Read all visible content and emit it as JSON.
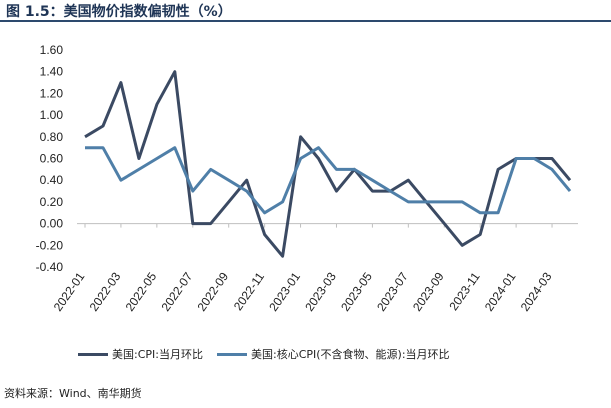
{
  "title": "图 1.5：美国物价指数偏韧性（%）",
  "source": "资料来源：Wind、南华期货",
  "colors": {
    "series1": "#3b4a63",
    "series2": "#4f7fa8",
    "accent": "#1f3556"
  },
  "chart_data": {
    "type": "line",
    "x": [
      "2022-01",
      "2022-02",
      "2022-03",
      "2022-04",
      "2022-05",
      "2022-06",
      "2022-07",
      "2022-08",
      "2022-09",
      "2022-10",
      "2022-11",
      "2022-12",
      "2023-01",
      "2023-02",
      "2023-03",
      "2023-04",
      "2023-05",
      "2023-06",
      "2023-07",
      "2023-08",
      "2023-09",
      "2023-10",
      "2023-11",
      "2023-12",
      "2024-01",
      "2024-02",
      "2024-03",
      "2024-04"
    ],
    "x_tick_labels": [
      "2022-01",
      "2022-03",
      "2022-05",
      "2022-07",
      "2022-09",
      "2022-11",
      "2023-01",
      "2023-03",
      "2023-05",
      "2023-07",
      "2023-09",
      "2023-11",
      "2024-01",
      "2024-03"
    ],
    "series": [
      {
        "name": "美国:CPI:当月环比",
        "values": [
          0.8,
          0.9,
          1.3,
          0.6,
          1.1,
          1.4,
          0.0,
          0.0,
          0.2,
          0.4,
          -0.1,
          -0.3,
          0.8,
          0.6,
          0.3,
          0.5,
          0.3,
          0.3,
          0.4,
          0.2,
          0.0,
          -0.2,
          -0.1,
          0.5,
          0.6,
          0.6,
          0.6,
          0.4
        ]
      },
      {
        "name": "美国:核心CPI(不含食物、能源):当月环比",
        "values": [
          0.7,
          0.7,
          0.4,
          0.5,
          0.6,
          0.7,
          0.3,
          0.5,
          0.4,
          0.3,
          0.1,
          0.2,
          0.6,
          0.7,
          0.5,
          0.5,
          0.4,
          0.3,
          0.2,
          0.2,
          0.2,
          0.2,
          0.1,
          0.1,
          0.6,
          0.6,
          0.5,
          0.3
        ]
      }
    ],
    "y_ticks": [
      "1.60",
      "1.40",
      "1.20",
      "1.00",
      "0.80",
      "0.60",
      "0.40",
      "0.20",
      "0.00",
      "-0.20",
      "-0.40"
    ],
    "ylim": [
      -0.4,
      1.6
    ],
    "grid": false,
    "legend": "bottom"
  }
}
